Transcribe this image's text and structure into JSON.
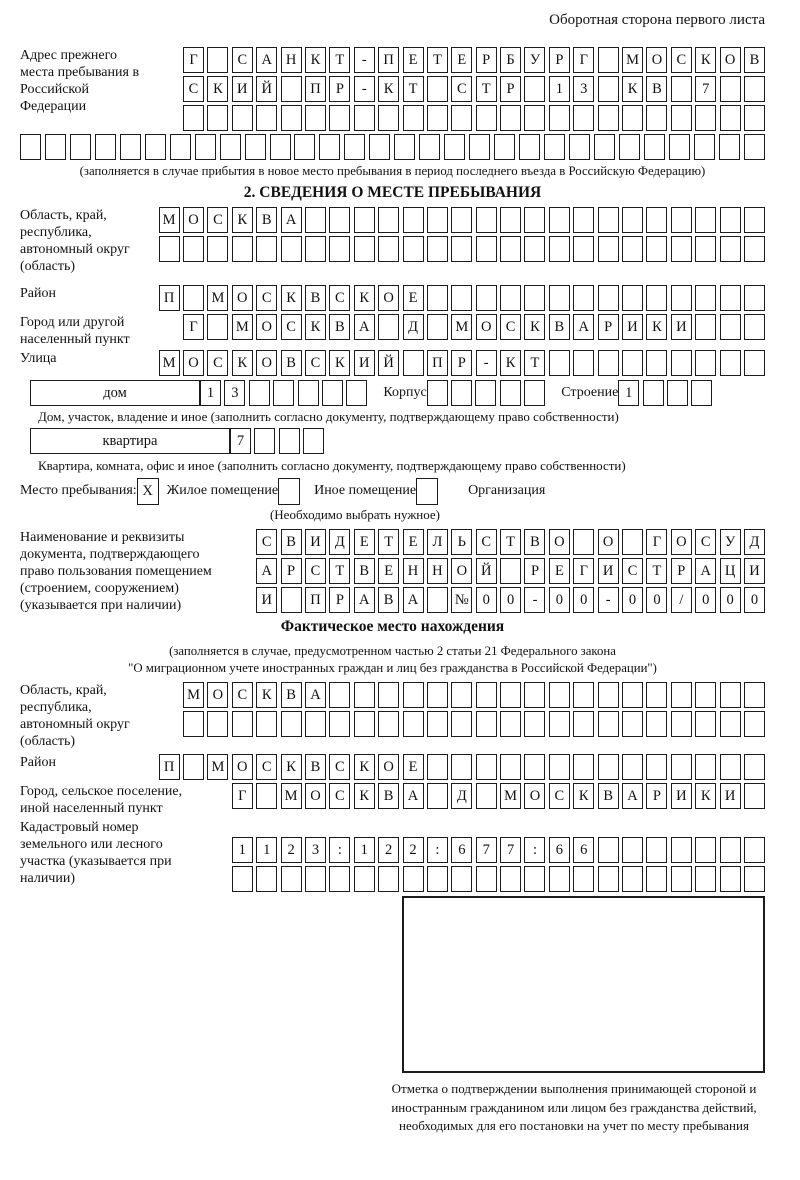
{
  "header": {
    "title": "Оборотная сторона первого листа"
  },
  "prev_address": {
    "label": "Адрес прежнего места пребывания в Российской Федерации",
    "rows": [
      "Г САНКТ-ПЕТЕРБУРГ МОСКОВ",
      "СКИЙ ПР-КТ СТР 13 КВ 7",
      ""
    ],
    "extra_row": "",
    "note": "(заполняется в случае прибытия в новое место пребывания в период последнего въезда в Российскую Федерацию)"
  },
  "section2": {
    "title": "2. СВЕДЕНИЯ О МЕСТЕ ПРЕБЫВАНИЯ",
    "region": {
      "label": "Область, край, республика, автономный округ (область)",
      "rows": [
        "МОСКВА",
        ""
      ]
    },
    "district": {
      "label": "Район",
      "value": "П МОСКВСКОЕ"
    },
    "city": {
      "label": "Город или другой населенный пункт",
      "value": "Г МОСКВА Д МОСКВАРИКИ"
    },
    "street": {
      "label": "Улица",
      "value": "МОСКОВСКИЙ ПР-КТ"
    },
    "house": {
      "label": "дом",
      "value": "13",
      "korpus_label": "Корпус",
      "korpus_value": "",
      "stroenie_label": "Строение",
      "stroenie_value": "1",
      "note": "Дом, участок, владение и иное (заполнить согласно документу, подтверждающему право собственности)"
    },
    "apartment": {
      "label": "квартира",
      "value": "7",
      "note": "Квартира, комната, офис и иное (заполнить согласно документу, подтверждающему право собственности)"
    },
    "residence_type": {
      "label": "Место пребывания:",
      "options": [
        {
          "label": "Жилое помещение",
          "checked": "X"
        },
        {
          "label": "Иное помещение",
          "checked": ""
        },
        {
          "label": "Организация",
          "checked": ""
        }
      ],
      "note": "(Необходимо выбрать нужное)"
    },
    "document": {
      "label": "Наименование и реквизиты документа, подтверждающего право пользования помещением (строением, сооружением) (указывается при наличии)",
      "rows": [
        "СВИДЕТЕЛЬСТВО О ГОСУД",
        "АРСТВЕННОЙ РЕГИСТРАЦИ",
        "И ПРАВА №00-00-00/000"
      ]
    }
  },
  "actual_location": {
    "title": "Фактическое место нахождения",
    "note1": "(заполняется в случае, предусмотренном частью 2 статьи 21 Федерального закона",
    "note2": "\"О миграционном учете иностранных граждан и лиц без гражданства в Российской Федерации\")",
    "region": {
      "label": "Область, край, республика, автономный округ (область)",
      "rows": [
        "МОСКВА",
        ""
      ]
    },
    "district": {
      "label": "Район",
      "value": "П МОСКВСКОЕ"
    },
    "city": {
      "label": "Город, сельское поселение, иной населенный пункт",
      "value": "Г МОСКВА Д МОСКВАРИКИ"
    },
    "cadastral": {
      "label": "Кадастровый номер земельного или лесного участка (указывается при наличии)",
      "rows": [
        "1123:122:677:66",
        ""
      ]
    }
  },
  "stamp": {
    "note": "Отметка о подтверждении выполнения принимающей стороной и иностранным гражданином или лицом без гражданства действий, необходимых для его постановки на учет по месту пребывания"
  }
}
